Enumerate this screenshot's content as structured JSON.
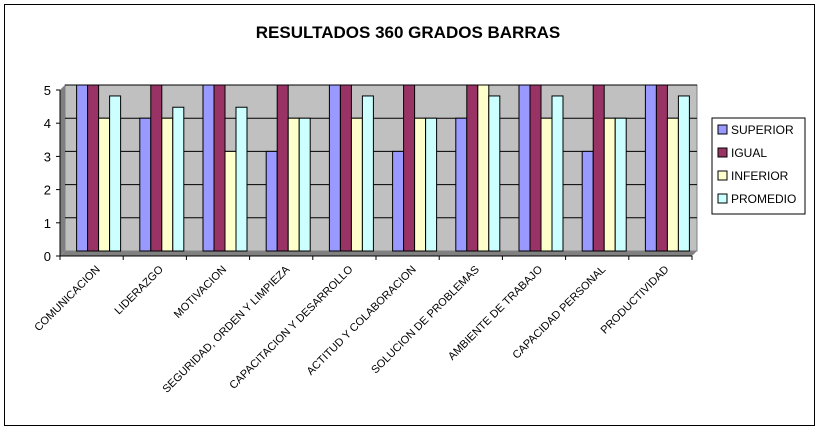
{
  "chart_data": {
    "type": "bar",
    "title": "RESULTADOS 360 GRADOS BARRAS",
    "xlabel": "",
    "ylabel": "",
    "ylim": [
      0,
      5
    ],
    "yticks": [
      "0",
      "1",
      "2",
      "3",
      "4",
      "5"
    ],
    "grid": true,
    "legend_position": "right",
    "categories": [
      "COMUNICACION",
      "LIDERAZGO",
      "MOTIVACION",
      "SEGURIDAD, ORDEN Y LIMPIEZA",
      "CAPACITACION Y DESARROLLO",
      "ACTITUD Y COLABORACION",
      "SOLUCION DE PROBLEMAS",
      "AMBIENTE DE TRABAJO",
      "CAPACIDAD PERSONAL",
      "PRODUCTIVIDAD"
    ],
    "series": [
      {
        "name": "SUPERIOR",
        "color": "#9999ff",
        "values": [
          5,
          4,
          5,
          3,
          5,
          3,
          4,
          5,
          3,
          5
        ]
      },
      {
        "name": "IGUAL",
        "color": "#993366",
        "values": [
          5,
          5,
          5,
          5,
          5,
          5,
          5,
          5,
          5,
          5
        ]
      },
      {
        "name": "INFERIOR",
        "color": "#ffffcc",
        "values": [
          4,
          4,
          3,
          4,
          4,
          4,
          5,
          4,
          4,
          4
        ]
      },
      {
        "name": "PROMEDIO",
        "color": "#ccffff",
        "values": [
          4.67,
          4.33,
          4.33,
          4,
          4.67,
          4,
          4.67,
          4.67,
          4,
          4.67
        ]
      }
    ],
    "plot_background": "#c0c0c0"
  }
}
